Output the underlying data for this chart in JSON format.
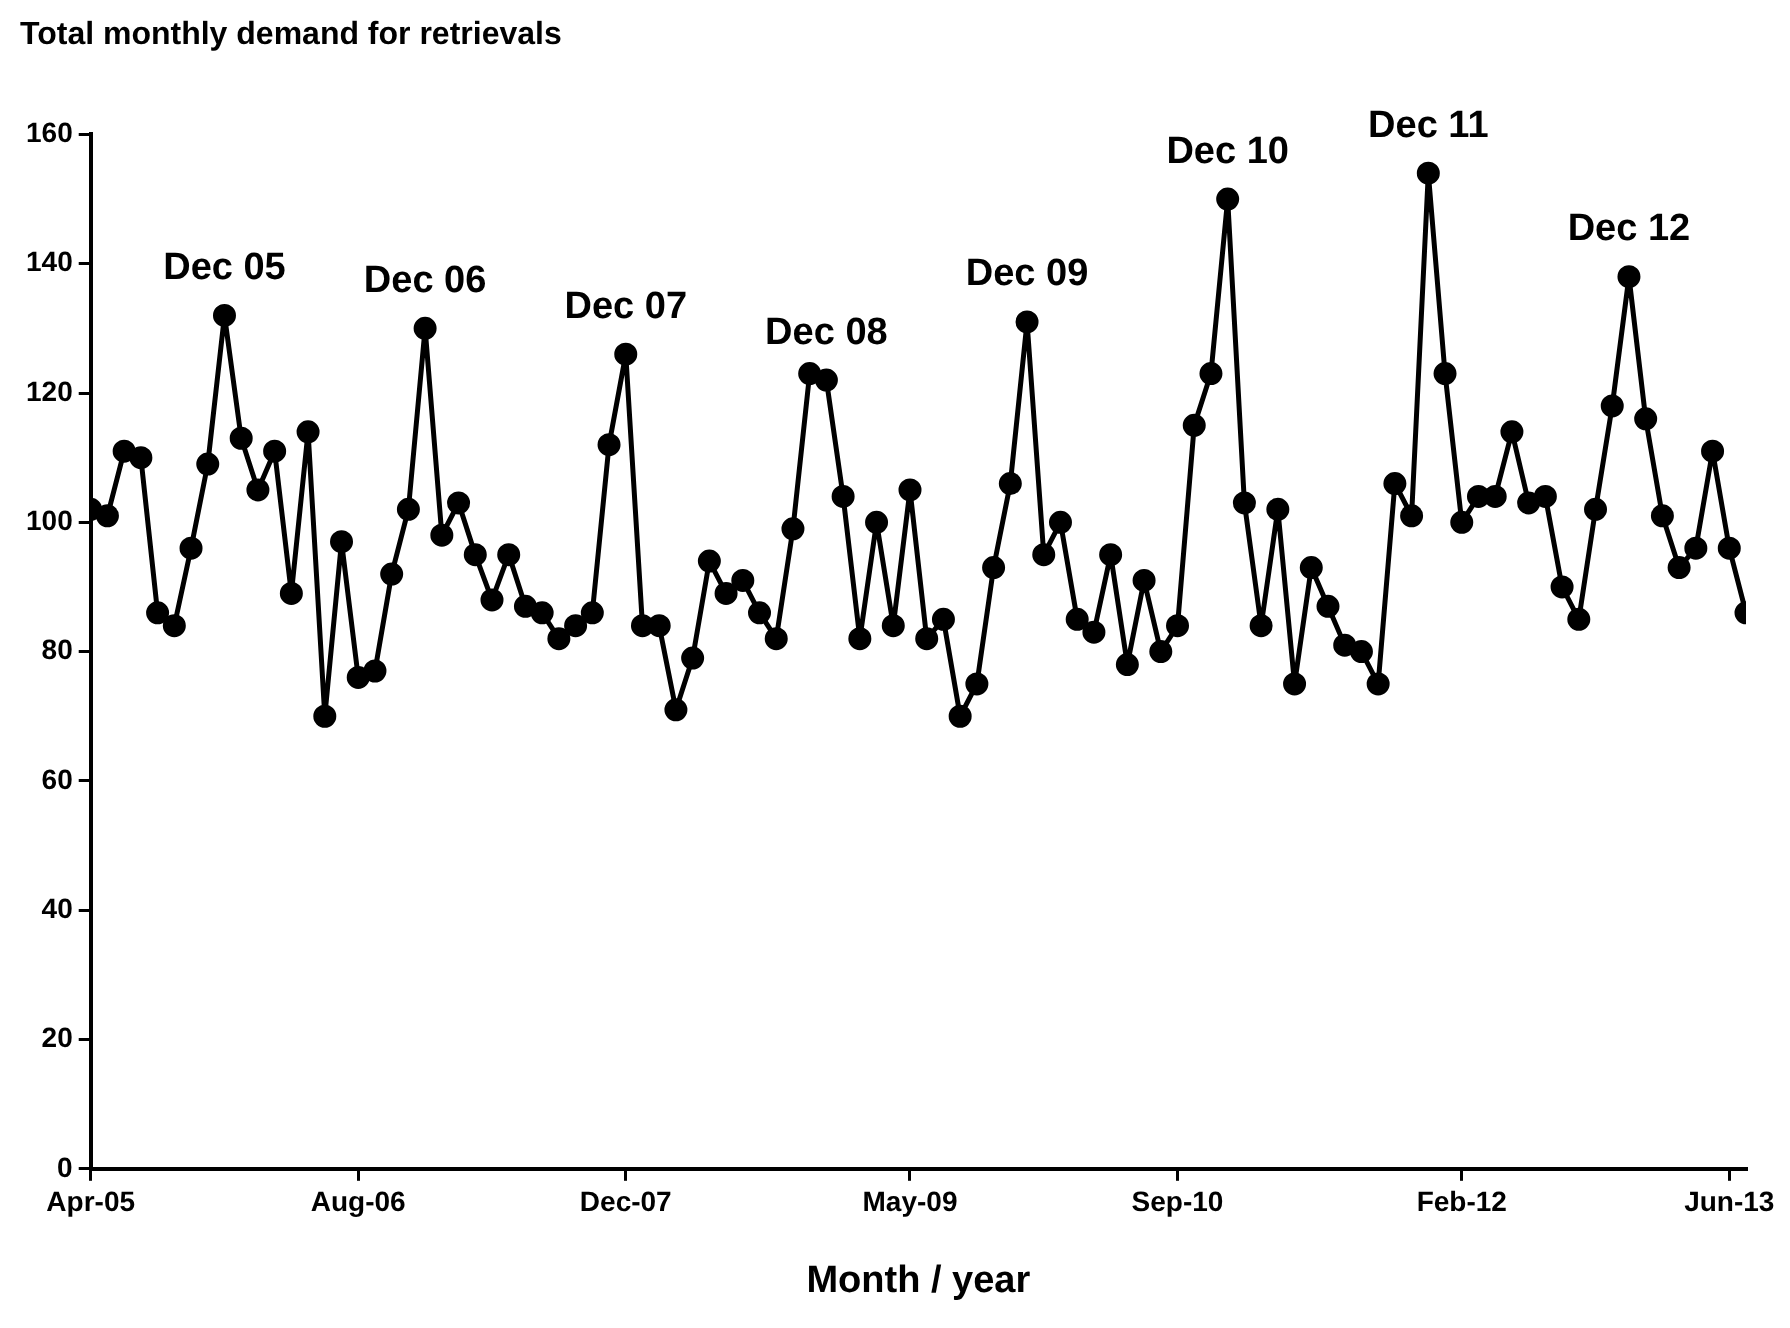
{
  "chart_data": {
    "type": "line",
    "title": "Total monthly demand for retrievals",
    "xlabel": "Month / year",
    "x": [
      "2005-04",
      "2005-05",
      "2005-06",
      "2005-07",
      "2005-08",
      "2005-09",
      "2005-10",
      "2005-11",
      "2005-12",
      "2006-01",
      "2006-02",
      "2006-03",
      "2006-04",
      "2006-05",
      "2006-06",
      "2006-07",
      "2006-08",
      "2006-09",
      "2006-10",
      "2006-11",
      "2006-12",
      "2007-01",
      "2007-02",
      "2007-03",
      "2007-04",
      "2007-05",
      "2007-06",
      "2007-07",
      "2007-08",
      "2007-09",
      "2007-10",
      "2007-11",
      "2007-12",
      "2008-01",
      "2008-02",
      "2008-03",
      "2008-04",
      "2008-05",
      "2008-06",
      "2008-07",
      "2008-08",
      "2008-09",
      "2008-10",
      "2008-11",
      "2008-12",
      "2009-01",
      "2009-02",
      "2009-03",
      "2009-04",
      "2009-05",
      "2009-06",
      "2009-07",
      "2009-08",
      "2009-09",
      "2009-10",
      "2009-11",
      "2009-12",
      "2010-01",
      "2010-02",
      "2010-03",
      "2010-04",
      "2010-05",
      "2010-06",
      "2010-07",
      "2010-08",
      "2010-09",
      "2010-10",
      "2010-11",
      "2010-12",
      "2011-01",
      "2011-02",
      "2011-03",
      "2011-04",
      "2011-05",
      "2011-06",
      "2011-07",
      "2011-08",
      "2011-09",
      "2011-10",
      "2011-11",
      "2011-12",
      "2012-01",
      "2012-02",
      "2012-03",
      "2012-04",
      "2012-05",
      "2012-06",
      "2012-07",
      "2012-08",
      "2012-09",
      "2012-10",
      "2012-11",
      "2012-12",
      "2013-01",
      "2013-02",
      "2013-03",
      "2013-04",
      "2013-05",
      "2013-06",
      "2013-07"
    ],
    "series": [
      {
        "color": "#000000",
        "values": [
          102,
          101,
          111,
          110,
          86,
          84,
          96,
          109,
          132,
          113,
          105,
          111,
          89,
          114,
          70,
          97,
          76,
          77,
          92,
          102,
          130,
          98,
          103,
          95,
          88,
          95,
          87,
          86,
          82,
          84,
          86,
          112,
          126,
          84,
          84,
          71,
          79,
          94,
          89,
          91,
          86,
          82,
          99,
          123,
          122,
          104,
          82,
          100,
          84,
          105,
          82,
          85,
          70,
          75,
          93,
          106,
          131,
          95,
          100,
          85,
          83,
          95,
          78,
          91,
          80,
          84,
          115,
          123,
          150,
          103,
          84,
          102,
          75,
          93,
          87,
          81,
          80,
          75,
          106,
          101,
          154,
          123,
          100,
          104,
          104,
          114,
          103,
          104,
          90,
          85,
          102,
          118,
          138,
          116,
          101,
          93,
          96,
          111,
          96,
          86
        ]
      }
    ],
    "xlim": [
      "2005-04",
      "2013-07"
    ],
    "xticks": [
      {
        "value": "2005-04",
        "label": "Apr-05"
      },
      {
        "value": "2006-08",
        "label": "Aug-06"
      },
      {
        "value": "2007-12",
        "label": "Dec-07"
      },
      {
        "value": "2009-05",
        "label": "May-09"
      },
      {
        "value": "2010-09",
        "label": "Sep-10"
      },
      {
        "value": "2012-02",
        "label": "Feb-12"
      },
      {
        "value": "2013-06",
        "label": "Jun-13"
      }
    ],
    "ylim": [
      0,
      160
    ],
    "yticks": [
      0,
      20,
      40,
      60,
      80,
      100,
      120,
      140,
      160
    ],
    "annotations": [
      {
        "text": "Dec 05",
        "x": "2005-12",
        "y": 132
      },
      {
        "text": "Dec 06",
        "x": "2006-12",
        "y": 130
      },
      {
        "text": "Dec 07",
        "x": "2007-12",
        "y": 126
      },
      {
        "text": "Dec 08",
        "x": "2008-12",
        "y": 122
      },
      {
        "text": "Dec 09",
        "x": "2009-12",
        "y": 131
      },
      {
        "text": "Dec 10",
        "x": "2010-12",
        "y": 150
      },
      {
        "text": "Dec 11",
        "x": "2011-12",
        "y": 154
      },
      {
        "text": "Dec 12",
        "x": "2012-12",
        "y": 138
      }
    ],
    "grid": false,
    "legend": false,
    "marker": "circle",
    "line_style": "solid"
  }
}
